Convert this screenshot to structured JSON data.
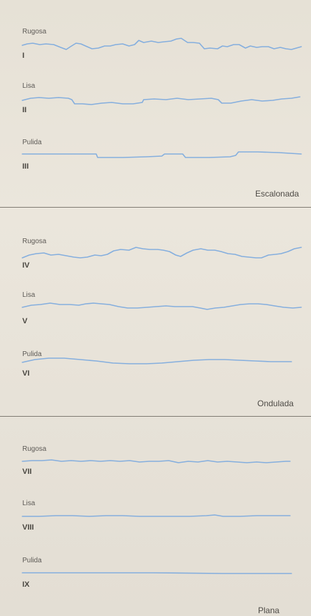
{
  "panels": [
    {
      "name": "Escalonada",
      "profiles": [
        {
          "type": "Rugosa",
          "numeral": "I"
        },
        {
          "type": "Lisa",
          "numeral": "II"
        },
        {
          "type": "Pulida",
          "numeral": "III"
        }
      ]
    },
    {
      "name": "Ondulada",
      "profiles": [
        {
          "type": "Rugosa",
          "numeral": "IV"
        },
        {
          "type": "Lisa",
          "numeral": "V"
        },
        {
          "type": "Pulida",
          "numeral": "VI"
        }
      ]
    },
    {
      "name": "Plana",
      "profiles": [
        {
          "type": "Rugosa",
          "numeral": "VII"
        },
        {
          "type": "Lisa",
          "numeral": "VIII"
        },
        {
          "type": "Pulida",
          "numeral": "IX"
        }
      ]
    }
  ],
  "colors": {
    "profile_line": "#84aede",
    "divider": "#7f7a72",
    "background": "#e9e4da"
  }
}
